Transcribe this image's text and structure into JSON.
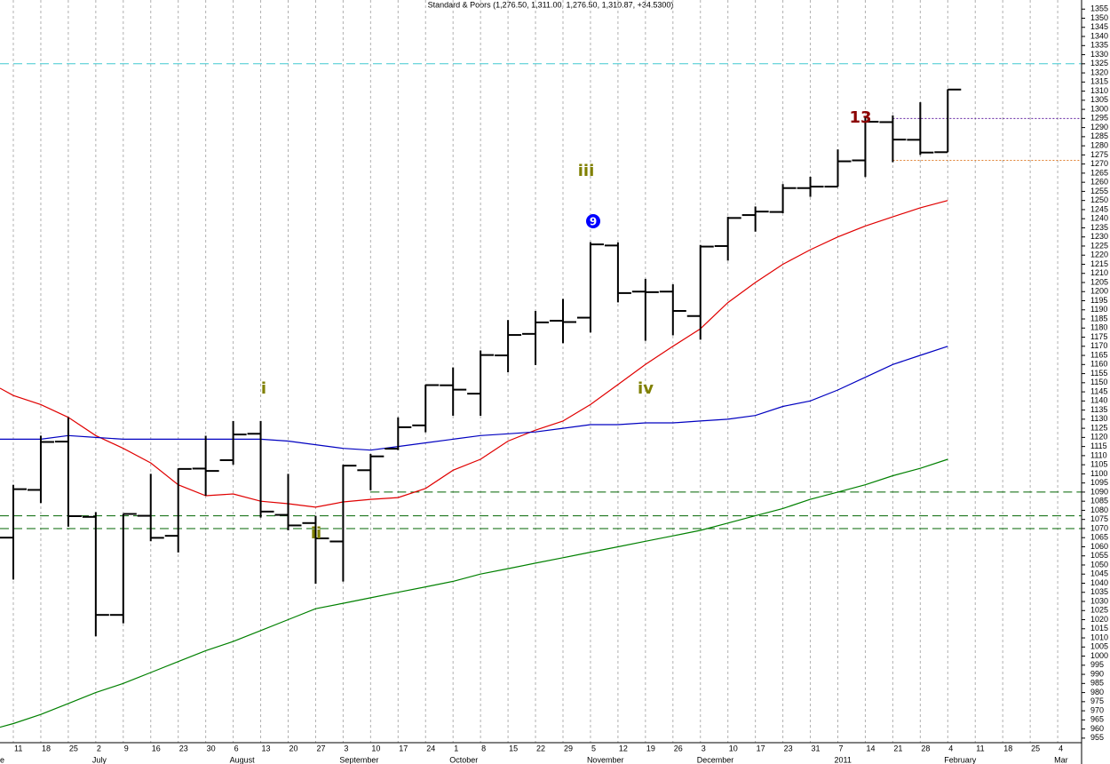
{
  "chart_data": {
    "type": "ohlc",
    "title": "Standard & Poors (1,276.50, 1,311.00, 1,276.50, 1,310.87, +34.5300)",
    "categories": [
      null,
      "11",
      "18",
      "25",
      "2",
      "9",
      "16",
      "23",
      "30",
      "6",
      "13",
      "20",
      "27",
      "3",
      "10",
      "17",
      "24",
      "1",
      "8",
      "15",
      "22",
      "29",
      "5",
      "12",
      "19",
      "26",
      "3",
      "10",
      "17",
      "23",
      "31",
      "7",
      "14",
      "21",
      "28",
      "4",
      "11",
      "18",
      "25",
      "4"
    ],
    "x_groups": [
      {
        "label": "e",
        "start": 0
      },
      {
        "label": "July",
        "start": 4
      },
      {
        "label": "August",
        "start": 9
      },
      {
        "label": "September",
        "start": 13
      },
      {
        "label": "October",
        "start": 17
      },
      {
        "label": "November",
        "start": 22
      },
      {
        "label": "December",
        "start": 26
      },
      {
        "label": "2011",
        "start": 31
      },
      {
        "label": "February",
        "start": 35
      },
      {
        "label": "Mar",
        "start": 39
      }
    ],
    "ohlc": {
      "color": "#000000",
      "open": [
        null,
        1065,
        1091.2,
        1117.7,
        1076.4,
        1022.6,
        1077,
        1066,
        1102.9,
        1107.5,
        1122,
        1077.5,
        1073,
        1062.9,
        1102,
        1113.8,
        1126.6,
        1148.6,
        1144,
        1165,
        1176.8,
        1184,
        1185.7,
        1225.3,
        1200,
        1200,
        1186.6,
        1225,
        1242,
        1243.7,
        1256.8,
        1257.6,
        1272,
        1293,
        1283.3,
        1276.5,
        null,
        null,
        null,
        null
      ],
      "high": [
        null,
        1094,
        1121,
        1131,
        1079,
        1078,
        1100,
        1103,
        1120.9,
        1129,
        1129,
        1100,
        1077,
        1105,
        1110.9,
        1131,
        1148.9,
        1158.4,
        1167.7,
        1184.4,
        1189.4,
        1196,
        1227.1,
        1227,
        1207,
        1204,
        1225.6,
        1241,
        1246.7,
        1259,
        1263,
        1278,
        1296,
        1296.7,
        1303.9,
        1311,
        null,
        null,
        null,
        null
      ],
      "low": [
        null,
        1042,
        1084,
        1071,
        1010.9,
        1018,
        1063,
        1056.9,
        1088,
        1105,
        1076,
        1069,
        1039.7,
        1040.9,
        1091,
        1113,
        1122.8,
        1131.9,
        1131.9,
        1155.7,
        1159.7,
        1171.7,
        1177.6,
        1194.1,
        1173,
        1176,
        1173.6,
        1217,
        1232.9,
        1243,
        1252,
        1257.6,
        1262.9,
        1271,
        1275,
        1276.5,
        null,
        null,
        null,
        null
      ],
      "close": [
        null,
        1091.6,
        1117.5,
        1076.8,
        1022.6,
        1078,
        1064.9,
        1102.7,
        1101.6,
        1121.6,
        1079.3,
        1071.7,
        1064.6,
        1104.5,
        1109.6,
        1125.6,
        1148.7,
        1146.2,
        1165.2,
        1176.2,
        1183.1,
        1183.3,
        1225.9,
        1199.2,
        1199.7,
        1189.4,
        1224.7,
        1240.4,
        1243.9,
        1256.8,
        1257.6,
        1271.5,
        1293.2,
        1283.4,
        1276.3,
        1310.87,
        null,
        null,
        null,
        null
      ]
    },
    "lines": [
      {
        "color": "#e00000",
        "values": [
          1147,
          1143,
          1138,
          1131,
          1121,
          1114,
          1106,
          1094,
          1088,
          1089,
          1085,
          1083.6,
          1081.7,
          1084.6,
          1086,
          1087,
          1092,
          1102,
          1108,
          1118,
          1124,
          1129,
          1138,
          1149,
          1160,
          1170,
          1179.6,
          1194,
          1205,
          1215,
          1223,
          1230,
          1236,
          1241,
          1246,
          1250,
          null,
          null,
          null,
          null
        ]
      },
      {
        "color": "#0000c0",
        "values": [
          1119,
          1119,
          1119,
          1121,
          1120,
          1119,
          1119,
          1119,
          1119,
          1119,
          1119,
          1118,
          1116,
          1114,
          1113,
          1115,
          1117,
          1119,
          1121,
          1122,
          1123,
          1125,
          1127,
          1127,
          1128,
          1128,
          1129,
          1130,
          1132,
          1137,
          1140,
          1146,
          1153,
          1160,
          1165,
          1170,
          null,
          null,
          null,
          null
        ]
      },
      {
        "color": "#008000",
        "values": [
          961,
          963,
          968,
          974,
          980,
          985,
          991,
          997,
          1003,
          1008,
          1014,
          1020,
          1026,
          1029,
          1032,
          1035,
          1038,
          1041,
          1045,
          1048,
          1051,
          1054,
          1057,
          1060,
          1063,
          1066,
          1069,
          1073,
          1077,
          1081,
          1086,
          1090,
          1094,
          1099,
          1103,
          1108,
          null,
          null,
          null,
          null
        ]
      }
    ],
    "levels": [
      {
        "value": 1325,
        "color": "#40c8d0",
        "style": "dashed",
        "start": 0
      },
      {
        "value": 1090,
        "color": "#006400",
        "style": "dashed",
        "start": 14
      },
      {
        "value": 1077,
        "color": "#006400",
        "style": "dashed",
        "start": 0
      },
      {
        "value": 1070,
        "color": "#006400",
        "style": "dashed",
        "start": 0
      },
      {
        "value": 1295,
        "color": "#6020a0",
        "style": "dotted",
        "start": 33
      },
      {
        "value": 1272,
        "color": "#e08030",
        "style": "dotted",
        "start": 33
      }
    ],
    "annotations": [
      {
        "text": "i",
        "color": "#808000"
      },
      {
        "text": "ii",
        "color": "#808000"
      },
      {
        "text": "iii",
        "color": "#808000"
      },
      {
        "text": "iv",
        "color": "#808000"
      },
      {
        "text": "9",
        "color": "#0000ff",
        "badge": true
      },
      {
        "text": "13",
        "color": "#8b0000"
      }
    ],
    "ylim": [
      952.5,
      1360
    ],
    "yticks": [
      955,
      960,
      965,
      970,
      975,
      980,
      985,
      990,
      995,
      1000,
      1005,
      1010,
      1015,
      1020,
      1025,
      1030,
      1035,
      1040,
      1045,
      1050,
      1055,
      1060,
      1065,
      1070,
      1075,
      1080,
      1085,
      1090,
      1095,
      1100,
      1105,
      1110,
      1115,
      1120,
      1125,
      1130,
      1135,
      1140,
      1145,
      1150,
      1155,
      1160,
      1165,
      1170,
      1175,
      1180,
      1185,
      1190,
      1195,
      1200,
      1205,
      1210,
      1215,
      1220,
      1225,
      1230,
      1235,
      1240,
      1245,
      1250,
      1255,
      1260,
      1265,
      1270,
      1275,
      1280,
      1285,
      1290,
      1295,
      1300,
      1305,
      1310,
      1315,
      1320,
      1325,
      1330,
      1335,
      1340,
      1345,
      1350,
      1355
    ],
    "x_grid": true
  }
}
